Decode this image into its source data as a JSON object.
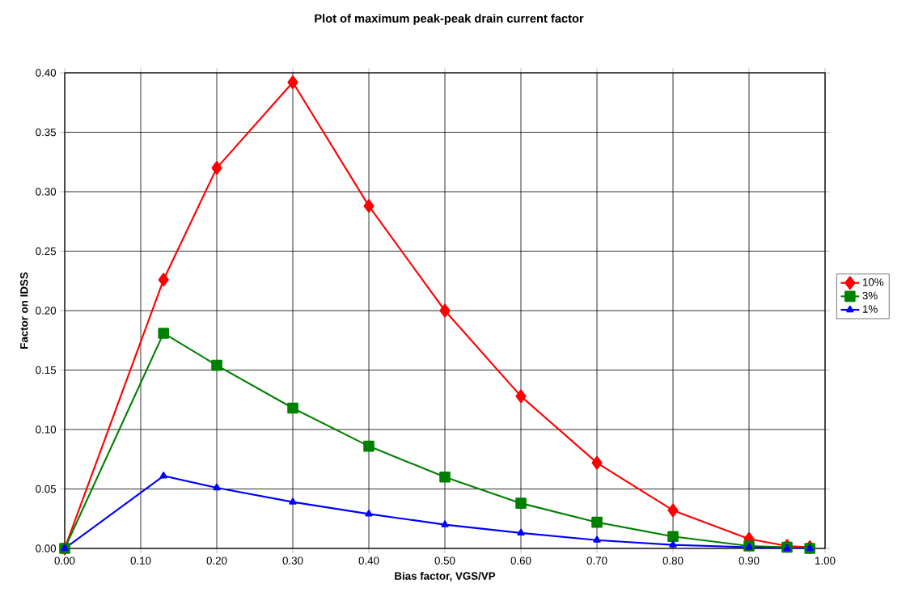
{
  "chart_data": {
    "type": "line",
    "title": "Plot of maximum peak-peak drain current factor",
    "xlabel": "Bias factor, VGS/VP",
    "ylabel": "Factor on IDSS",
    "x": [
      0,
      0.13,
      0.2,
      0.3,
      0.4,
      0.5,
      0.6,
      0.7,
      0.8,
      0.9,
      0.95,
      0.98
    ],
    "series": [
      {
        "name": "10%",
        "color": "#ff0000",
        "marker": "diamond",
        "values": [
          0,
          0.226,
          0.32,
          0.392,
          0.288,
          0.2,
          0.128,
          0.072,
          0.032,
          0.008,
          0.002,
          0.001
        ]
      },
      {
        "name": "3%",
        "color": "#008000",
        "marker": "square",
        "values": [
          0,
          0.181,
          0.154,
          0.118,
          0.086,
          0.06,
          0.038,
          0.022,
          0.01,
          0.002,
          0.001,
          0.0
        ]
      },
      {
        "name": "1%",
        "color": "#0000ff",
        "marker": "triangle",
        "values": [
          0,
          0.061,
          0.051,
          0.039,
          0.029,
          0.02,
          0.013,
          0.007,
          0.003,
          0.001,
          0.0,
          0.0
        ]
      }
    ],
    "xlim": [
      0,
      1
    ],
    "xticks": [
      {
        "value": 0,
        "label": "0.00"
      },
      {
        "value": 0.1,
        "label": "0.10"
      },
      {
        "value": 0.2,
        "label": "0.20"
      },
      {
        "value": 0.3,
        "label": "0.30"
      },
      {
        "value": 0.4,
        "label": "0.40"
      },
      {
        "value": 0.5,
        "label": "0.50"
      },
      {
        "value": 0.6,
        "label": "0.60"
      },
      {
        "value": 0.7,
        "label": "0.70"
      },
      {
        "value": 0.8,
        "label": "0.80"
      },
      {
        "value": 0.9,
        "label": "0.90"
      },
      {
        "value": 1,
        "label": "1.00"
      }
    ],
    "ylim": [
      0,
      0.4
    ],
    "yticks": [
      {
        "value": 0,
        "label": "0.00"
      },
      {
        "value": 0.05,
        "label": "0.05"
      },
      {
        "value": 0.1,
        "label": "0.10"
      },
      {
        "value": 0.15,
        "label": "0.15"
      },
      {
        "value": 0.2,
        "label": "0.20"
      },
      {
        "value": 0.25,
        "label": "0.25"
      },
      {
        "value": 0.3,
        "label": "0.30"
      },
      {
        "value": 0.35,
        "label": "0.35"
      },
      {
        "value": 0.4,
        "label": "0.40"
      }
    ],
    "grid": true,
    "legend": "right"
  }
}
